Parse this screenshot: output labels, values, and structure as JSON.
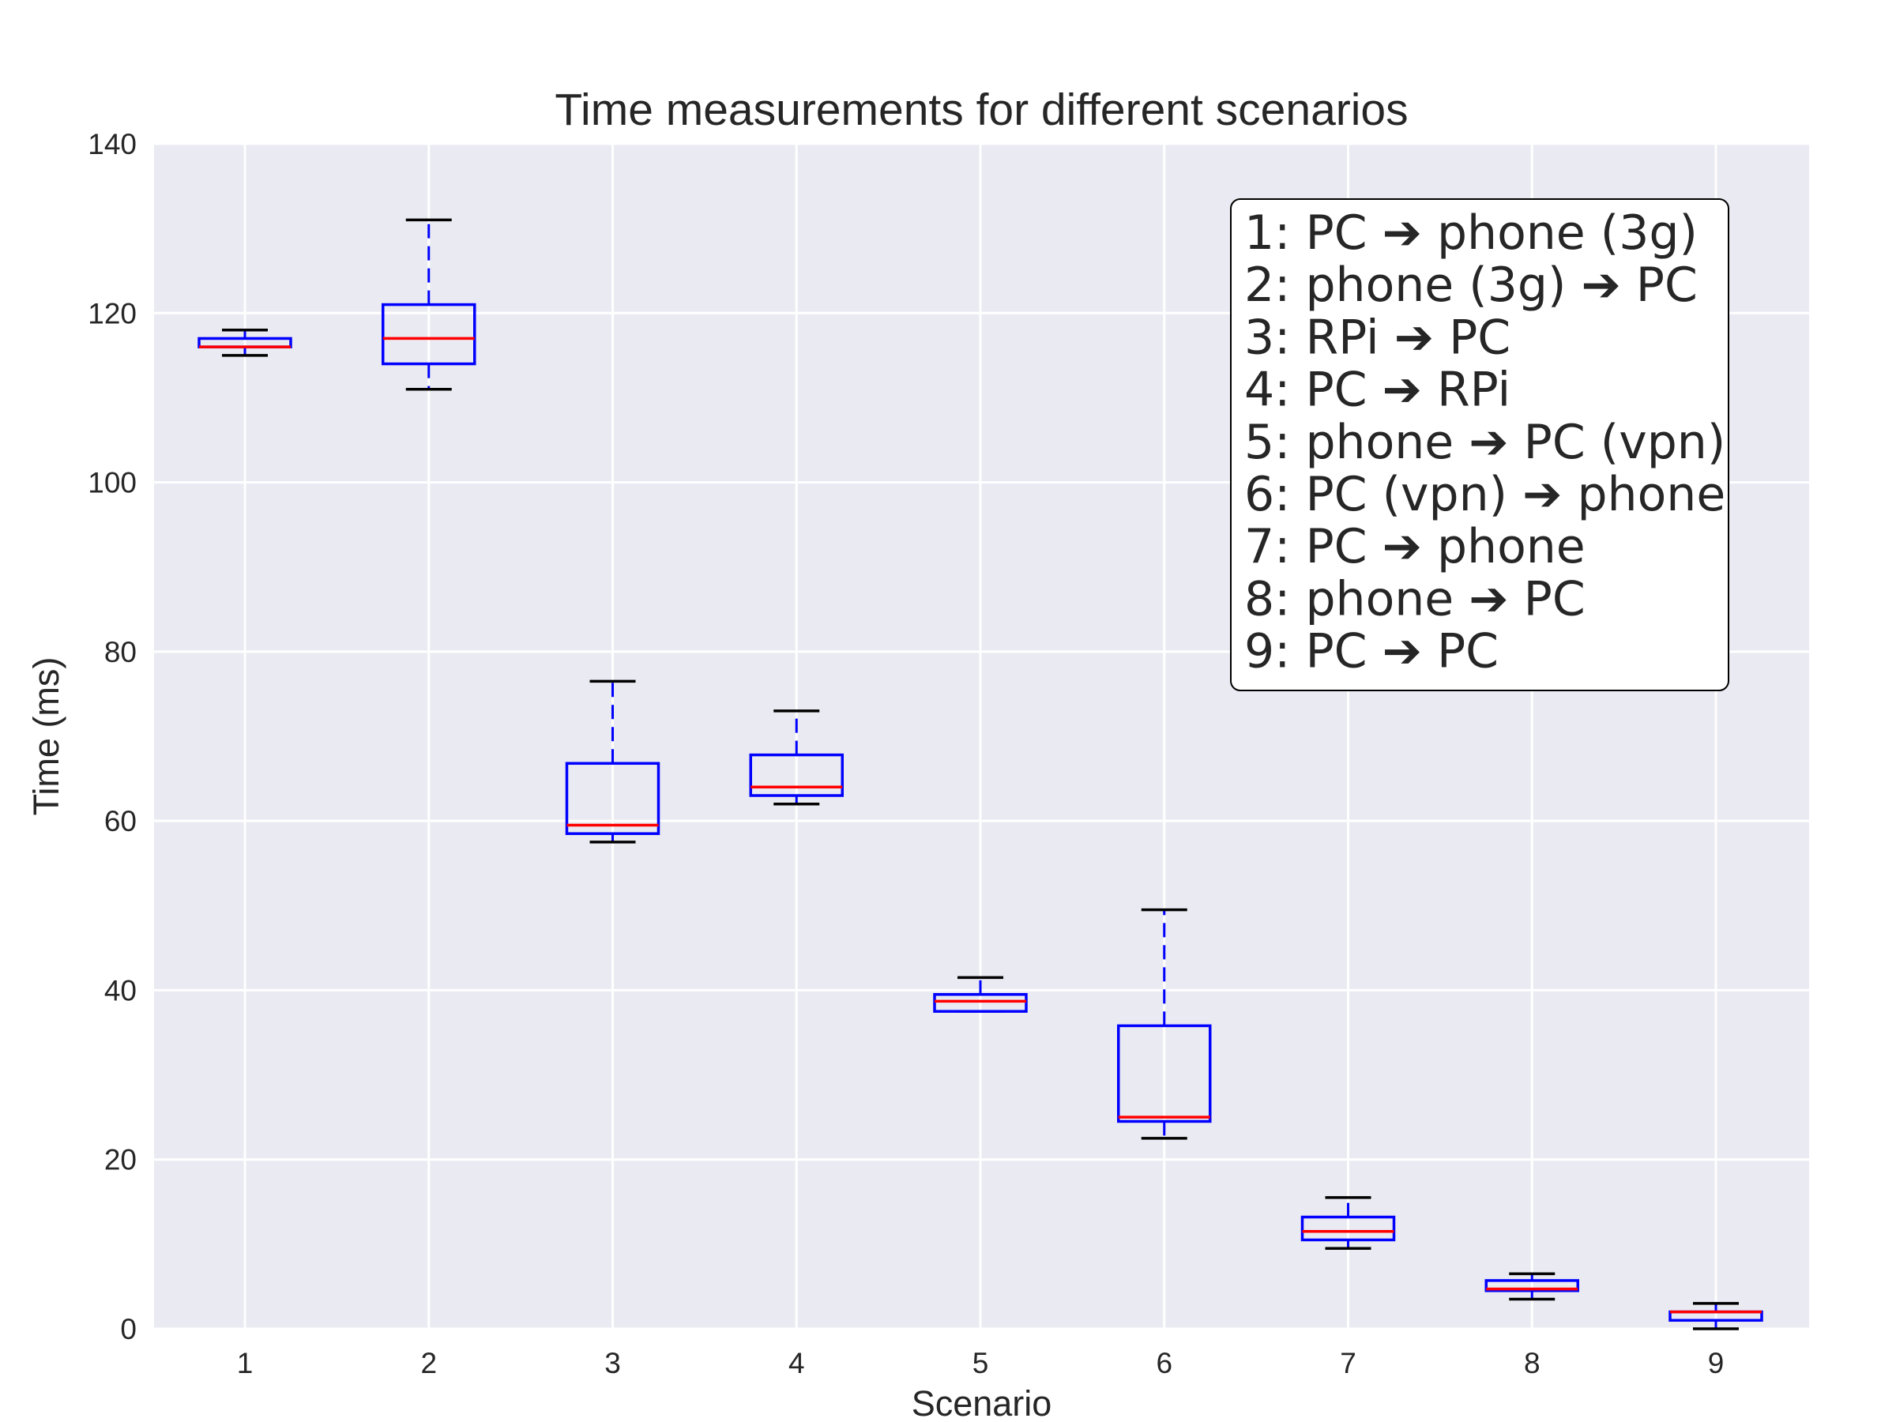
{
  "chart_data": {
    "type": "box",
    "title": "Time measurements for different scenarios",
    "xlabel": "Scenario",
    "ylabel": "Time (ms)",
    "ylim": [
      0,
      140
    ],
    "yticks": [
      0,
      20,
      40,
      60,
      80,
      100,
      120,
      140
    ],
    "categories": [
      "1",
      "2",
      "3",
      "4",
      "5",
      "6",
      "7",
      "8",
      "9"
    ],
    "boxes": [
      {
        "category": "1",
        "whisker_low": 115,
        "q1": 116,
        "median": 116,
        "q3": 117,
        "whisker_high": 118
      },
      {
        "category": "2",
        "whisker_low": 111,
        "q1": 114,
        "median": 117,
        "q3": 121,
        "whisker_high": 131
      },
      {
        "category": "3",
        "whisker_low": 57.5,
        "q1": 58.5,
        "median": 59.5,
        "q3": 66.8,
        "whisker_high": 76.5
      },
      {
        "category": "4",
        "whisker_low": 62,
        "q1": 63,
        "median": 64,
        "q3": 67.8,
        "whisker_high": 73
      },
      {
        "category": "5",
        "whisker_low": 37.5,
        "q1": 37.5,
        "median": 38.7,
        "q3": 39.5,
        "whisker_high": 41.5
      },
      {
        "category": "6",
        "whisker_low": 22.5,
        "q1": 24.5,
        "median": 25,
        "q3": 35.8,
        "whisker_high": 49.5
      },
      {
        "category": "7",
        "whisker_low": 9.5,
        "q1": 10.5,
        "median": 11.5,
        "q3": 13.2,
        "whisker_high": 15.5
      },
      {
        "category": "8",
        "whisker_low": 3.5,
        "q1": 4.5,
        "median": 4.7,
        "q3": 5.7,
        "whisker_high": 6.5
      },
      {
        "category": "9",
        "whisker_low": 0,
        "q1": 1,
        "median": 2,
        "q3": 2,
        "whisker_high": 3
      }
    ],
    "legend": {
      "placement": "upper-right",
      "entries": [
        "1: PC ➔ phone (3g)",
        "2: phone (3g) ➔ PC",
        "3: RPi ➔ PC",
        "4: PC ➔ RPi",
        "5: phone ➔ PC (vpn)",
        "6: PC (vpn) ➔ phone",
        "7: PC ➔ phone",
        "8: phone ➔ PC",
        "9: PC ➔ PC"
      ]
    },
    "grid": true,
    "colors": {
      "background": "#eaeaf2",
      "grid": "#ffffff",
      "box": "#0000ff",
      "median": "#ff0000",
      "cap": "#000000",
      "text": "#262626"
    }
  }
}
